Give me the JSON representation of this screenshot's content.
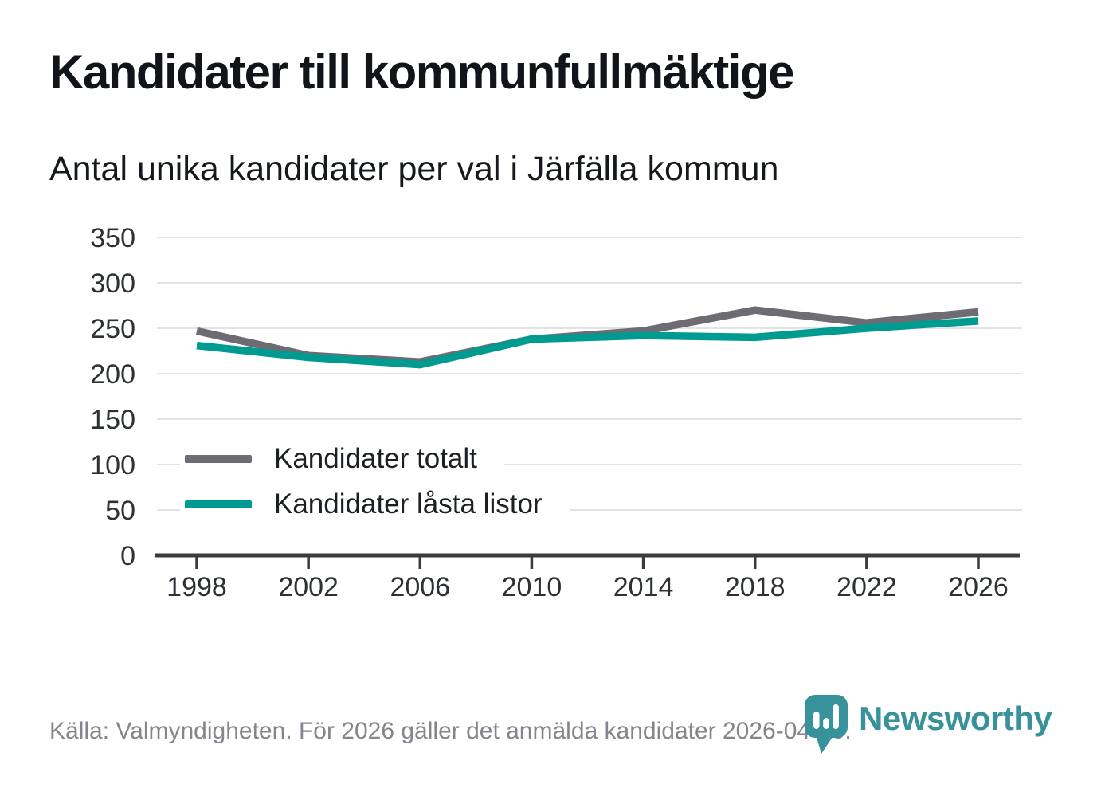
{
  "title": "Kandidater till kommunfullmäktige",
  "subtitle": "Antal unika kandidater per val i Järfälla kommun",
  "footer": {
    "source": "Källa: Valmyndigheten. För 2026 gäller det anmälda kandidater 2026-04-10.",
    "brand": "Newsworthy"
  },
  "colors": {
    "series_total": "#6e6b72",
    "series_locked": "#009b90",
    "gridline": "#e3e3e3",
    "axis": "#3b3b3f",
    "axis_label": "#2d3136",
    "footer_text": "#85858d",
    "logo_teal": "#38929b"
  },
  "chart_data": {
    "type": "line",
    "title": "Kandidater till kommunfullmäktige",
    "subtitle": "Antal unika kandidater per val i Järfälla kommun",
    "x": [
      1998,
      2002,
      2006,
      2010,
      2014,
      2018,
      2022,
      2026
    ],
    "series": [
      {
        "name": "Kandidater totalt",
        "color": "#6e6b72",
        "values": [
          247,
          220,
          213,
          238,
          247,
          270,
          256,
          268
        ]
      },
      {
        "name": "Kandidater låsta listor",
        "color": "#009b90",
        "values": [
          231,
          218,
          210,
          238,
          242,
          240,
          250,
          258
        ]
      }
    ],
    "xlabel": "",
    "ylabel": "",
    "ylim": [
      0,
      350
    ],
    "yticks": [
      0,
      50,
      100,
      150,
      200,
      250,
      300,
      350
    ],
    "grid": "horizontal",
    "legend_position": "inside-left-middle"
  }
}
